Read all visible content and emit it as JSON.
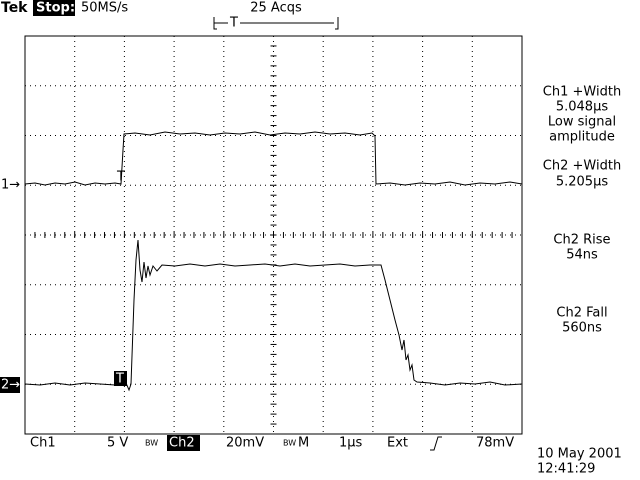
{
  "header": {
    "brand": "Tek",
    "status": "Stop:",
    "sample_rate": "50MS/s",
    "acquisitions": "25 Acqs",
    "trigger_position": "T"
  },
  "markers": {
    "ch1": "1→",
    "ch2": "2→",
    "trigger_ch1": "T",
    "trigger_ch2": "T"
  },
  "measurements": [
    {
      "label": "Ch1 +Width",
      "value": "5.048µs",
      "note": [
        "Low signal",
        "amplitude"
      ]
    },
    {
      "label": "Ch2 +Width",
      "value": "5.205µs"
    },
    {
      "label": "Ch2 Rise",
      "value": "54ns"
    },
    {
      "label": "Ch2 Fall",
      "value": "560ns"
    }
  ],
  "footer": {
    "ch1": "Ch1",
    "ch1_scale": "5 V",
    "ch1_bw": "BW",
    "ch2": "Ch2",
    "ch2_scale": "20mV",
    "ch2_bw": "BW",
    "mode": "M",
    "timebase": "1µs",
    "trigger_source": "Ext",
    "trigger_level": "78mV",
    "date": "10 May 2001",
    "time": "12:41:29"
  }
}
